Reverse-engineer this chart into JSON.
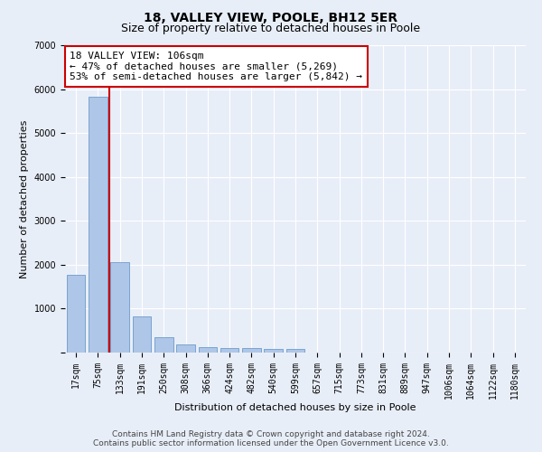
{
  "title": "18, VALLEY VIEW, POOLE, BH12 5ER",
  "subtitle": "Size of property relative to detached houses in Poole",
  "xlabel": "Distribution of detached houses by size in Poole",
  "ylabel": "Number of detached properties",
  "bin_labels": [
    "17sqm",
    "75sqm",
    "133sqm",
    "191sqm",
    "250sqm",
    "308sqm",
    "366sqm",
    "424sqm",
    "482sqm",
    "540sqm",
    "599sqm",
    "657sqm",
    "715sqm",
    "773sqm",
    "831sqm",
    "889sqm",
    "947sqm",
    "1006sqm",
    "1064sqm",
    "1122sqm",
    "1180sqm"
  ],
  "bar_values": [
    1780,
    5830,
    2060,
    830,
    340,
    195,
    120,
    110,
    105,
    80,
    80,
    0,
    0,
    0,
    0,
    0,
    0,
    0,
    0,
    0,
    0
  ],
  "bar_color": "#aec6e8",
  "bar_edgecolor": "#5a8fc2",
  "vline_x": 1.5,
  "vline_color": "#cc0000",
  "annotation_line1": "18 VALLEY VIEW: 106sqm",
  "annotation_line2": "← 47% of detached houses are smaller (5,269)",
  "annotation_line3": "53% of semi-detached houses are larger (5,842) →",
  "annotation_box_color": "#cc0000",
  "ylim": [
    0,
    7000
  ],
  "yticks": [
    0,
    1000,
    2000,
    3000,
    4000,
    5000,
    6000,
    7000
  ],
  "footer_line1": "Contains HM Land Registry data © Crown copyright and database right 2024.",
  "footer_line2": "Contains public sector information licensed under the Open Government Licence v3.0.",
  "bg_color": "#e8eef8",
  "plot_bg_color": "#e8eef8",
  "grid_color": "#ffffff",
  "title_fontsize": 10,
  "subtitle_fontsize": 9,
  "axis_label_fontsize": 8,
  "tick_fontsize": 7,
  "annotation_fontsize": 8,
  "footer_fontsize": 6.5
}
